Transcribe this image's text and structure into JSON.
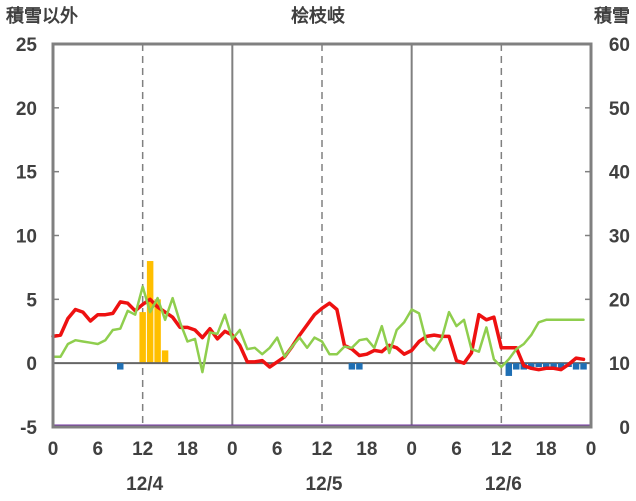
{
  "chart_data": {
    "type": "bar+line",
    "title": "桧枝岐",
    "left_axis_label": "積雪以外",
    "right_axis_label": "積雪",
    "left_ylim": [
      -5,
      25
    ],
    "right_ylim": [
      0,
      60
    ],
    "left_ticks": [
      "25",
      "20",
      "15",
      "10",
      "5",
      "0",
      "-5"
    ],
    "right_ticks": [
      "60",
      "50",
      "40",
      "30",
      "20",
      "10",
      "0"
    ],
    "x_hours": [
      0,
      72
    ],
    "x_tick_labels": [
      "0",
      "6",
      "12",
      "18",
      "0",
      "6",
      "12",
      "18",
      "0",
      "6",
      "12",
      "18",
      "0"
    ],
    "date_labels": [
      {
        "label": "12/4",
        "hour": 12
      },
      {
        "label": "12/5",
        "hour": 36
      },
      {
        "label": "12/6",
        "hour": 60
      }
    ],
    "grid": "vertical-only",
    "colors": {
      "red": "#ee1111",
      "green": "#8fce4e",
      "snowfall_bars": "#ffbf00",
      "precip_bars": "#1f6fb4",
      "snow_depth_baseline": "#7030a0",
      "zero_line": "#666666",
      "frame": "#808080"
    },
    "series": [
      {
        "color": "red",
        "axis": "left",
        "x": [
          0,
          1,
          2,
          3,
          4,
          5,
          6,
          7,
          8,
          9,
          10,
          11,
          12,
          13,
          14,
          15,
          16,
          17,
          18,
          19,
          20,
          21,
          22,
          23,
          24,
          25,
          26,
          27,
          28,
          29,
          30,
          31,
          32,
          33,
          34,
          35,
          36,
          37,
          38,
          39,
          40,
          41,
          42,
          43,
          44,
          45,
          46,
          47,
          48,
          49,
          50,
          51,
          52,
          53,
          54,
          55,
          56,
          57,
          58,
          59,
          60,
          61,
          62,
          63,
          64,
          65,
          66,
          67,
          68,
          69,
          70,
          71
        ],
        "values": [
          2.1,
          2.2,
          3.5,
          4.2,
          4.0,
          3.3,
          3.8,
          3.8,
          3.9,
          4.8,
          4.7,
          4.1,
          4.6,
          5.0,
          4.4,
          4.0,
          3.6,
          2.8,
          2.8,
          2.6,
          2.0,
          2.7,
          1.9,
          2.5,
          2.2,
          1.4,
          0.1,
          0.1,
          0.2,
          -0.3,
          0.1,
          0.5,
          1.3,
          2.2,
          3.0,
          3.8,
          4.3,
          4.7,
          4.2,
          1.4,
          1.1,
          0.6,
          0.7,
          1.0,
          0.9,
          1.4,
          1.2,
          0.7,
          1.0,
          1.7,
          2.1,
          2.2,
          2.1,
          2.1,
          0.2,
          0.0,
          0.8,
          3.8,
          3.4,
          3.6,
          1.2,
          1.2,
          1.2,
          -0.2,
          -0.4,
          -0.5,
          -0.4,
          -0.4,
          -0.5,
          -0.1,
          0.4,
          0.3
        ]
      },
      {
        "color": "green",
        "axis": "left",
        "x": [
          0,
          1,
          2,
          3,
          4,
          5,
          6,
          7,
          8,
          9,
          10,
          11,
          12,
          13,
          14,
          15,
          16,
          17,
          18,
          19,
          20,
          21,
          22,
          23,
          24,
          25,
          26,
          27,
          28,
          29,
          30,
          31,
          32,
          33,
          34,
          35,
          36,
          37,
          38,
          39,
          40,
          41,
          42,
          43,
          44,
          45,
          46,
          47,
          48,
          49,
          50,
          51,
          52,
          53,
          54,
          55,
          56,
          57,
          58,
          59,
          60,
          61,
          62,
          63,
          64,
          65,
          66,
          67,
          68,
          69,
          70,
          71
        ],
        "values": [
          0.5,
          0.5,
          1.5,
          1.8,
          1.7,
          1.6,
          1.5,
          1.8,
          2.6,
          2.7,
          4.1,
          3.8,
          6.0,
          4.0,
          5.1,
          3.4,
          5.1,
          3.2,
          1.7,
          1.9,
          -0.7,
          2.4,
          2.3,
          3.8,
          1.9,
          2.6,
          1.1,
          1.2,
          0.7,
          1.2,
          2.0,
          0.5,
          1.3,
          2.0,
          1.2,
          2.0,
          1.7,
          0.7,
          0.7,
          1.3,
          1.2,
          1.8,
          1.9,
          1.2,
          2.9,
          0.8,
          2.6,
          3.2,
          4.2,
          3.9,
          1.6,
          1.0,
          1.9,
          4.0,
          2.9,
          3.4,
          1.1,
          0.9,
          2.8,
          0.3,
          -0.3,
          0.3,
          1.1,
          1.5,
          2.2,
          3.2,
          3.4,
          3.4,
          3.4,
          3.4,
          3.4,
          3.4
        ]
      }
    ],
    "snowfall_bars": {
      "color": "snowfall_bars",
      "axis": "left",
      "x": [
        12,
        13,
        14,
        15
      ],
      "values": [
        4,
        8,
        5,
        1
      ]
    },
    "precip_bars": {
      "color": "precip_bars",
      "axis": "left",
      "x": [
        9,
        40,
        41,
        61,
        62,
        63,
        64,
        65,
        66,
        67,
        68,
        69,
        70,
        71
      ],
      "values": [
        -0.5,
        -0.5,
        -0.5,
        -1.0,
        -0.5,
        -0.5,
        -0.3,
        -0.3,
        -0.3,
        -0.3,
        -0.5,
        -0.3,
        -0.5,
        -0.5
      ]
    },
    "snow_depth": {
      "color": "snow_depth_baseline",
      "axis": "right",
      "x": [
        0,
        72
      ],
      "values": [
        0,
        0
      ]
    }
  }
}
